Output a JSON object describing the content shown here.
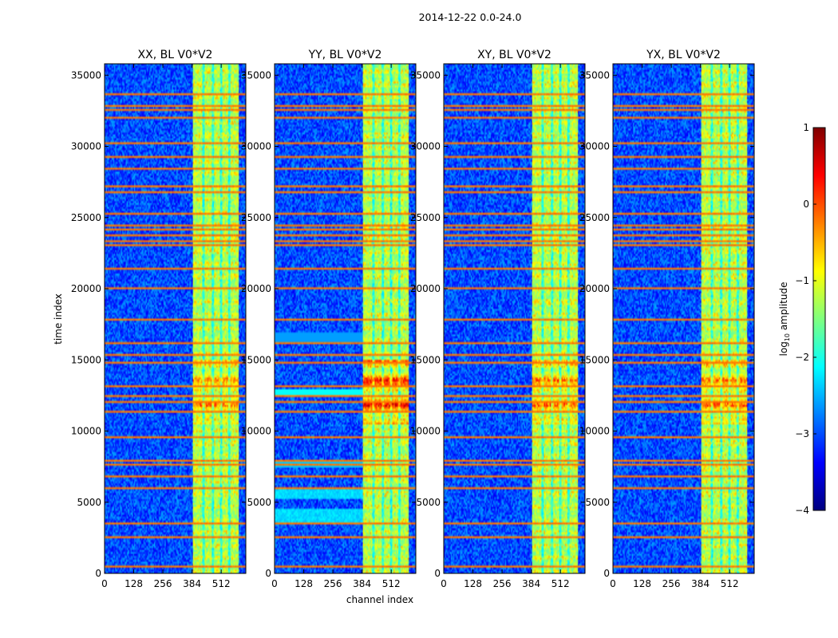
{
  "chart_data": {
    "type": "heatmap",
    "suptitle": "2014-12-22 0.0-24.0",
    "xlabel": "channel index",
    "ylabel": "time index",
    "xlim": [
      0,
      620
    ],
    "ylim": [
      0,
      35800
    ],
    "xticks": [
      0,
      128,
      256,
      384,
      512
    ],
    "yticks": [
      0,
      5000,
      10000,
      15000,
      20000,
      25000,
      30000,
      35000
    ],
    "panels": [
      {
        "title": "XX, BL V0*V2",
        "key": "XX"
      },
      {
        "title": "YY, BL V0*V2",
        "key": "YY"
      },
      {
        "title": "XY, BL V0*V2",
        "key": "XY"
      },
      {
        "title": "YX, BL V0*V2",
        "key": "YX"
      }
    ],
    "colorbar": {
      "label": "log10 amplitude",
      "label_main": "log",
      "label_sub": "10",
      "label_rest": " amplitude",
      "range": [
        -4,
        1
      ],
      "ticks": [
        -4,
        -3,
        -2,
        -1,
        0,
        1
      ],
      "tick_labels": [
        "−4",
        "−3",
        "−2",
        "−1",
        "0",
        "1"
      ],
      "colormap": "jet"
    },
    "bright_band_channels": [
      385,
      590
    ],
    "channel_gap_centers": [
      434,
      475,
      512,
      548
    ],
    "rfi_rows_time_index": [
      500,
      2600,
      3500,
      6000,
      6800,
      7700,
      7900,
      9600,
      11300,
      12000,
      12400,
      13200,
      14800,
      15300,
      16200,
      17800,
      20000,
      21400,
      23100,
      23400,
      23800,
      24100,
      24500,
      25300,
      26800,
      27200,
      28400,
      29200,
      30200,
      32000,
      32600,
      32800,
      33600
    ],
    "burst_time_range": [
      10500,
      15000
    ]
  }
}
